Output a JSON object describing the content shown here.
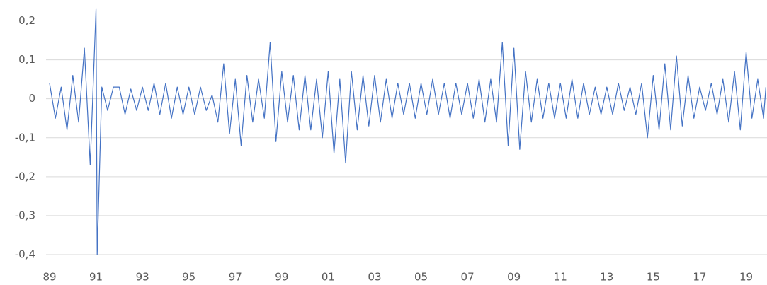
{
  "chart_data": {
    "type": "line",
    "x": [
      1989.0,
      1989.25,
      1989.5,
      1989.75,
      1990.0,
      1990.25,
      1990.5,
      1990.75,
      1991.0,
      1991.05,
      1991.25,
      1991.5,
      1991.75,
      1992.0,
      1992.25,
      1992.5,
      1992.75,
      1993.0,
      1993.25,
      1993.5,
      1993.75,
      1994.0,
      1994.25,
      1994.5,
      1994.75,
      1995.0,
      1995.25,
      1995.5,
      1995.75,
      1996.0,
      1996.25,
      1996.5,
      1996.75,
      1997.0,
      1997.25,
      1997.5,
      1997.75,
      1998.0,
      1998.25,
      1998.5,
      1998.75,
      1999.0,
      1999.25,
      1999.5,
      1999.75,
      2000.0,
      2000.25,
      2000.5,
      2000.75,
      2001.0,
      2001.25,
      2001.5,
      2001.75,
      2002.0,
      2002.25,
      2002.5,
      2002.75,
      2003.0,
      2003.25,
      2003.5,
      2003.75,
      2004.0,
      2004.25,
      2004.5,
      2004.75,
      2005.0,
      2005.25,
      2005.5,
      2005.75,
      2006.0,
      2006.25,
      2006.5,
      2006.75,
      2007.0,
      2007.25,
      2007.5,
      2007.75,
      2008.0,
      2008.25,
      2008.5,
      2008.75,
      2009.0,
      2009.25,
      2009.5,
      2009.75,
      2010.0,
      2010.25,
      2010.5,
      2010.75,
      2011.0,
      2011.25,
      2011.5,
      2011.75,
      2012.0,
      2012.25,
      2012.5,
      2012.75,
      2013.0,
      2013.25,
      2013.5,
      2013.75,
      2014.0,
      2014.25,
      2014.5,
      2014.75,
      2015.0,
      2015.25,
      2015.5,
      2015.75,
      2016.0,
      2016.25,
      2016.5,
      2016.75,
      2017.0,
      2017.25,
      2017.5,
      2017.75,
      2018.0,
      2018.25,
      2018.5,
      2018.75,
      2019.0,
      2019.25,
      2019.5,
      2019.75,
      2019.85
    ],
    "series": [
      {
        "color": "#4472c4",
        "values": [
          0.04,
          -0.05,
          0.03,
          -0.08,
          0.06,
          -0.06,
          0.13,
          -0.17,
          0.23,
          -0.4,
          0.03,
          -0.03,
          0.03,
          0.03,
          -0.04,
          0.025,
          -0.03,
          0.03,
          -0.03,
          0.04,
          -0.04,
          0.04,
          -0.05,
          0.03,
          -0.04,
          0.03,
          -0.04,
          0.03,
          -0.03,
          0.01,
          -0.06,
          0.09,
          -0.09,
          0.05,
          -0.12,
          0.06,
          -0.06,
          0.05,
          -0.05,
          0.145,
          -0.11,
          0.07,
          -0.06,
          0.06,
          -0.08,
          0.06,
          -0.08,
          0.05,
          -0.1,
          0.07,
          -0.14,
          0.05,
          -0.165,
          0.07,
          -0.08,
          0.06,
          -0.07,
          0.06,
          -0.06,
          0.05,
          -0.05,
          0.04,
          -0.04,
          0.04,
          -0.05,
          0.04,
          -0.04,
          0.05,
          -0.04,
          0.04,
          -0.05,
          0.04,
          -0.04,
          0.04,
          -0.05,
          0.05,
          -0.06,
          0.05,
          -0.06,
          0.145,
          -0.12,
          0.13,
          -0.13,
          0.07,
          -0.06,
          0.05,
          -0.05,
          0.04,
          -0.05,
          0.04,
          -0.05,
          0.05,
          -0.05,
          0.04,
          -0.04,
          0.03,
          -0.04,
          0.03,
          -0.04,
          0.04,
          -0.03,
          0.03,
          -0.04,
          0.04,
          -0.1,
          0.06,
          -0.08,
          0.09,
          -0.08,
          0.11,
          -0.07,
          0.06,
          -0.05,
          0.03,
          -0.03,
          0.04,
          -0.04,
          0.05,
          -0.06,
          0.07,
          -0.08,
          0.12,
          -0.05,
          0.05,
          -0.05,
          0.03
        ]
      }
    ],
    "xlim": [
      1989,
      2019.9
    ],
    "xticks": [
      {
        "value": 1989,
        "label": "89"
      },
      {
        "value": 1991,
        "label": "91"
      },
      {
        "value": 1993,
        "label": "93"
      },
      {
        "value": 1995,
        "label": "95"
      },
      {
        "value": 1997,
        "label": "97"
      },
      {
        "value": 1999,
        "label": "99"
      },
      {
        "value": 2001,
        "label": "01"
      },
      {
        "value": 2003,
        "label": "03"
      },
      {
        "value": 2005,
        "label": "05"
      },
      {
        "value": 2007,
        "label": "07"
      },
      {
        "value": 2009,
        "label": "09"
      },
      {
        "value": 2011,
        "label": "11"
      },
      {
        "value": 2013,
        "label": "13"
      },
      {
        "value": 2015,
        "label": "15"
      },
      {
        "value": 2017,
        "label": "17"
      },
      {
        "value": 2019,
        "label": "19"
      }
    ],
    "ylim": [
      -0.4,
      0.23
    ],
    "yticks": [
      {
        "value": 0.2,
        "label": "0,2"
      },
      {
        "value": 0.1,
        "label": "0,1"
      },
      0,
      {
        "value": -0.1,
        "label": "-0,1"
      },
      {
        "value": -0.2,
        "label": "-0,2"
      },
      {
        "value": -0.3,
        "label": "-0,3"
      },
      {
        "value": -0.4,
        "label": "-0,4"
      }
    ],
    "grid": true
  }
}
